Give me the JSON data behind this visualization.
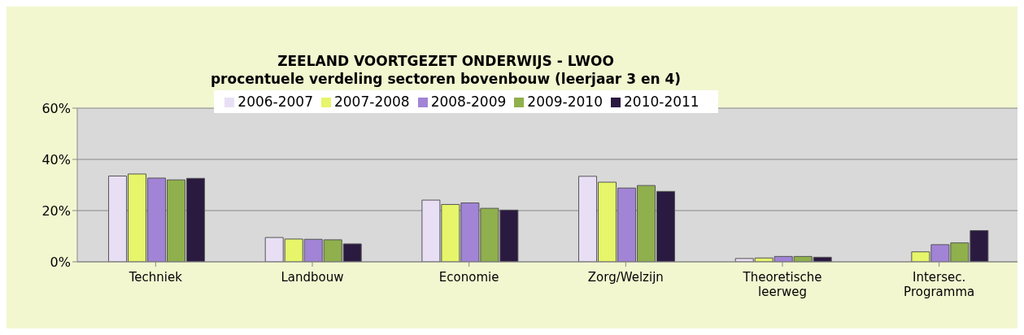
{
  "chart_data": {
    "type": "bar",
    "title": "ZEELAND VOORTGEZET ONDERWIJS - LWOO",
    "subtitle": "procentuele verdeling sectoren bovenbouw (leerjaar 3 en 4)",
    "categories": [
      "Techniek",
      "Landbouw",
      "Economie",
      "Zorg/Welzijn",
      "Theoretische\nleerweg",
      "Intersec.\nProgramma"
    ],
    "series": [
      {
        "name": "2006-2007",
        "color": "#e8dff5",
        "values": [
          33.5,
          9.5,
          24.1,
          33.4,
          1.3,
          null
        ]
      },
      {
        "name": "2007-2008",
        "color": "#e6f56a",
        "values": [
          34.3,
          8.9,
          22.4,
          31.1,
          1.5,
          3.9
        ]
      },
      {
        "name": "2008-2009",
        "color": "#a284d6",
        "values": [
          32.7,
          8.8,
          23.0,
          28.8,
          2.1,
          6.7
        ]
      },
      {
        "name": "2009-2010",
        "color": "#8fb04c",
        "values": [
          32.0,
          8.6,
          20.9,
          29.8,
          2.1,
          7.4
        ]
      },
      {
        "name": "2010-2011",
        "color": "#2b1a40",
        "values": [
          32.6,
          7.0,
          20.2,
          27.5,
          1.8,
          12.2
        ]
      }
    ],
    "ylim": [
      0,
      60
    ],
    "yticks": [
      {
        "value": 0,
        "label": "0%"
      },
      {
        "value": 20,
        "label": "20%"
      },
      {
        "value": 40,
        "label": "40%"
      },
      {
        "value": 60,
        "label": "60%"
      }
    ],
    "grid": "y",
    "legend": "top"
  }
}
